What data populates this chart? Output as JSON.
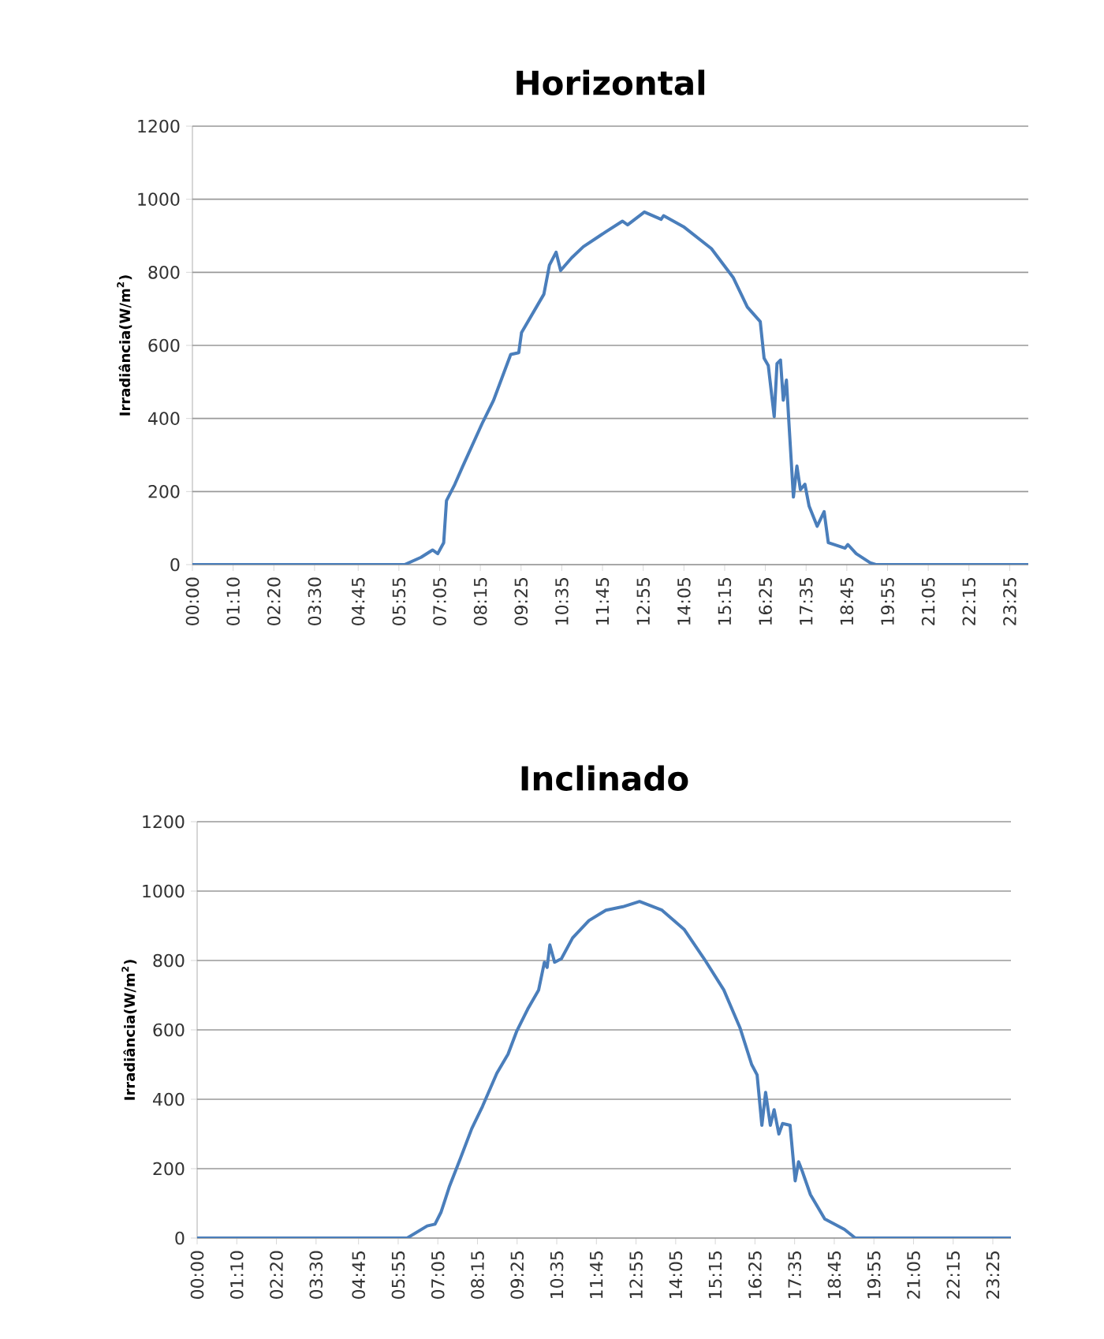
{
  "chart_data": [
    {
      "type": "line",
      "title": "Horizontal",
      "ylabel": "Irradiância(W/m$^{2}$)",
      "grid": "y",
      "xlim": [
        0,
        23.95
      ],
      "ylim": [
        0,
        1200
      ],
      "yticks": [
        0,
        200,
        400,
        600,
        800,
        1000,
        1200
      ],
      "xticks": [
        {
          "value": 0,
          "label": "00:00"
        },
        {
          "value": 1.1667,
          "label": "01:10"
        },
        {
          "value": 2.3333,
          "label": "02:20"
        },
        {
          "value": 3.5,
          "label": "03:30"
        },
        {
          "value": 4.75,
          "label": "04:45"
        },
        {
          "value": 5.9167,
          "label": "05:55"
        },
        {
          "value": 7.0833,
          "label": "07:05"
        },
        {
          "value": 8.25,
          "label": "08:15"
        },
        {
          "value": 9.4167,
          "label": "09:25"
        },
        {
          "value": 10.5833,
          "label": "10:35"
        },
        {
          "value": 11.75,
          "label": "11:45"
        },
        {
          "value": 12.9167,
          "label": "12:55"
        },
        {
          "value": 14.0833,
          "label": "14:05"
        },
        {
          "value": 15.25,
          "label": "15:15"
        },
        {
          "value": 16.4167,
          "label": "16:25"
        },
        {
          "value": 17.5833,
          "label": "17:35"
        },
        {
          "value": 18.75,
          "label": "18:45"
        },
        {
          "value": 19.9167,
          "label": "19:55"
        },
        {
          "value": 21.0833,
          "label": "21:05"
        },
        {
          "value": 22.25,
          "label": "22:15"
        },
        {
          "value": 23.4167,
          "label": "23:25"
        }
      ],
      "x": [
        0,
        6.08,
        6.55,
        6.88,
        7.03,
        7.2,
        7.28,
        7.52,
        7.75,
        8.32,
        8.63,
        9.12,
        9.35,
        9.43,
        10.07,
        10.23,
        10.42,
        10.55,
        10.87,
        11.2,
        11.83,
        12.32,
        12.47,
        12.95,
        13.43,
        13.5,
        14.07,
        14.87,
        15.5,
        15.9,
        16.27,
        16.38,
        16.5,
        16.67,
        16.75,
        16.85,
        16.93,
        17.02,
        17.1,
        17.22,
        17.32,
        17.42,
        17.55,
        17.67,
        17.9,
        18.1,
        18.22,
        18.7,
        18.78,
        19.02,
        19.42,
        19.58,
        23.95
      ],
      "series": [
        {
          "color": "#4a7ebb",
          "values": [
            0,
            0,
            20,
            40,
            30,
            60,
            175,
            220,
            270,
            390,
            450,
            575,
            580,
            635,
            740,
            820,
            855,
            805,
            840,
            870,
            910,
            940,
            930,
            965,
            945,
            955,
            925,
            865,
            785,
            705,
            665,
            565,
            545,
            405,
            550,
            560,
            450,
            505,
            375,
            185,
            270,
            205,
            220,
            160,
            105,
            145,
            60,
            45,
            55,
            30,
            5,
            0,
            0
          ]
        }
      ]
    },
    {
      "type": "line",
      "title": "Inclinado",
      "ylabel": "Irradiância(W/m$^{2}$)",
      "grid": "y",
      "xlim": [
        0,
        23.95
      ],
      "ylim": [
        0,
        1200
      ],
      "yticks": [
        0,
        200,
        400,
        600,
        800,
        1000,
        1200
      ],
      "xticks": [
        {
          "value": 0,
          "label": "00:00"
        },
        {
          "value": 1.1667,
          "label": "01:10"
        },
        {
          "value": 2.3333,
          "label": "02:20"
        },
        {
          "value": 3.5,
          "label": "03:30"
        },
        {
          "value": 4.75,
          "label": "04:45"
        },
        {
          "value": 5.9167,
          "label": "05:55"
        },
        {
          "value": 7.0833,
          "label": "07:05"
        },
        {
          "value": 8.25,
          "label": "08:15"
        },
        {
          "value": 9.4167,
          "label": "09:25"
        },
        {
          "value": 10.5833,
          "label": "10:35"
        },
        {
          "value": 11.75,
          "label": "11:45"
        },
        {
          "value": 12.9167,
          "label": "12:55"
        },
        {
          "value": 14.0833,
          "label": "14:05"
        },
        {
          "value": 15.25,
          "label": "15:15"
        },
        {
          "value": 16.4167,
          "label": "16:25"
        },
        {
          "value": 17.5833,
          "label": "17:35"
        },
        {
          "value": 18.75,
          "label": "18:45"
        },
        {
          "value": 19.9167,
          "label": "19:55"
        },
        {
          "value": 21.0833,
          "label": "21:05"
        },
        {
          "value": 22.25,
          "label": "22:15"
        },
        {
          "value": 23.4167,
          "label": "23:25"
        }
      ],
      "x": [
        0,
        6.18,
        6.77,
        7.0,
        7.18,
        7.43,
        7.75,
        8.08,
        8.4,
        8.82,
        9.15,
        9.4,
        9.73,
        10.05,
        10.22,
        10.3,
        10.38,
        10.52,
        10.72,
        11.05,
        11.53,
        12.03,
        12.53,
        13.02,
        13.68,
        14.33,
        14.92,
        15.5,
        15.98,
        16.32,
        16.48,
        16.62,
        16.73,
        16.87,
        16.98,
        17.12,
        17.23,
        17.45,
        17.6,
        17.7,
        17.8,
        18.05,
        18.47,
        19.05,
        19.37,
        23.95
      ],
      "series": [
        {
          "color": "#4a7ebb",
          "values": [
            0,
            0,
            35,
            40,
            75,
            150,
            230,
            315,
            380,
            475,
            530,
            595,
            660,
            715,
            795,
            780,
            845,
            795,
            805,
            865,
            915,
            945,
            955,
            970,
            945,
            890,
            805,
            715,
            605,
            500,
            470,
            325,
            420,
            325,
            370,
            300,
            330,
            325,
            165,
            220,
            195,
            125,
            55,
            25,
            0,
            0
          ]
        }
      ]
    }
  ]
}
